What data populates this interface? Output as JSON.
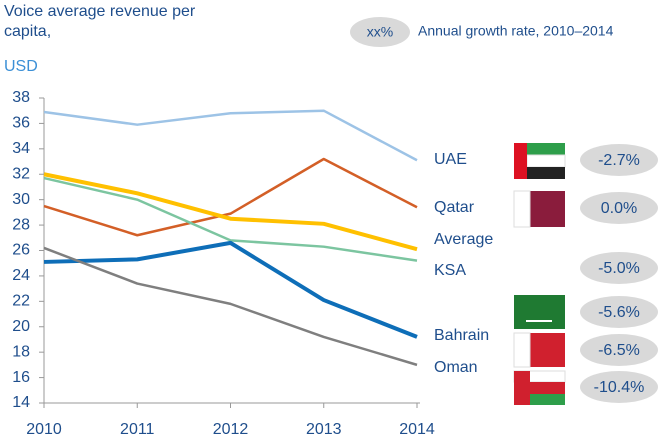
{
  "chart_data": {
    "type": "line",
    "title": "Voice average revenue per capita,",
    "unit": "USD",
    "legend_key": {
      "sample": "xx%",
      "label": "Annual growth rate, 2010–2014"
    },
    "categories": [
      "2010",
      "2011",
      "2012",
      "2013",
      "2014"
    ],
    "ylim": [
      14,
      38
    ],
    "yticks": [
      14,
      16,
      18,
      20,
      22,
      24,
      26,
      28,
      30,
      32,
      34,
      36,
      38
    ],
    "series": [
      {
        "name": "UAE",
        "color": "#9dc3e6",
        "width": 2.5,
        "values": [
          36.9,
          35.9,
          36.8,
          37.0,
          33.1
        ]
      },
      {
        "name": "Qatar",
        "color": "#d35f27",
        "width": 2.5,
        "values": [
          29.5,
          27.2,
          28.9,
          33.2,
          29.4
        ]
      },
      {
        "name": "Average",
        "color": "#ffc000",
        "width": 4,
        "values": [
          32.0,
          30.5,
          28.5,
          28.1,
          26.1
        ]
      },
      {
        "name": "KSA",
        "color": "#7cc5a0",
        "width": 2.5,
        "values": [
          31.7,
          30.0,
          26.8,
          26.3,
          25.2
        ]
      },
      {
        "name": "Bahrain",
        "color": "#0e6eb8",
        "width": 4,
        "values": [
          25.1,
          25.3,
          26.6,
          22.1,
          19.2
        ]
      },
      {
        "name": "Oman",
        "color": "#7f7f7f",
        "width": 2.5,
        "values": [
          26.2,
          23.4,
          21.8,
          19.2,
          17.0
        ]
      }
    ],
    "growth_rates": {
      "values": [
        -2.7,
        0.0,
        -5.0,
        -5.6,
        -6.5,
        -10.4
      ],
      "value_labels": [
        "-2.7%",
        "0.0%",
        "-5.0%",
        "-5.6%",
        "-6.5%",
        "-10.4%"
      ]
    }
  }
}
